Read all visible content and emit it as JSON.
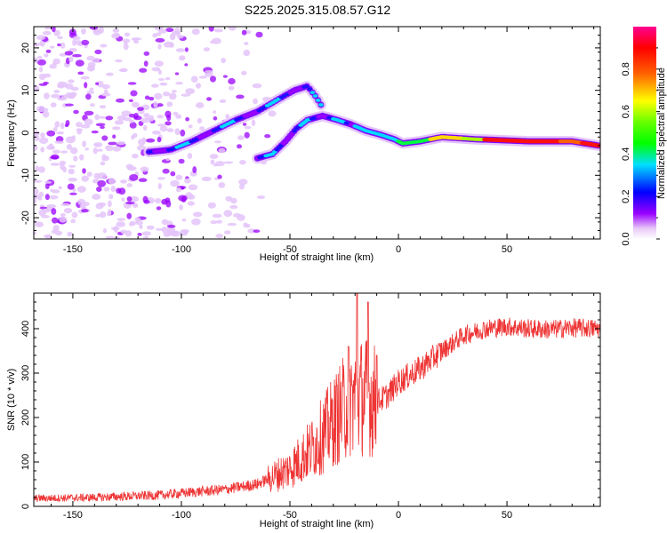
{
  "title": "S225.2025.315.08.57.G12",
  "chart_data": [
    {
      "type": "heatmap",
      "xlabel": "Height of straight line (km)",
      "ylabel": "Frequency (Hz)",
      "xlim": [
        -168,
        93
      ],
      "ylim": [
        -25,
        25
      ],
      "x_ticks": [
        -150,
        -100,
        -50,
        0,
        50
      ],
      "y_ticks": [
        -20,
        -10,
        0,
        10,
        20
      ],
      "colorbar": {
        "label": "Normalized spectral amplitude",
        "range": [
          0,
          1
        ],
        "ticks": [
          "0.0",
          "0.2",
          "0.4",
          "0.6",
          "0.8"
        ],
        "tick_values": [
          0.0,
          0.2,
          0.4,
          0.6,
          0.8
        ],
        "colors": [
          "#ffffff",
          "#e8c8f8",
          "#9a00ff",
          "#0000ff",
          "#00e0ff",
          "#00ff00",
          "#ffff00",
          "#ff6000",
          "#ff0000",
          "#ff0090"
        ]
      },
      "ridge_lower": [
        [
          -115,
          -4.5
        ],
        [
          -105,
          -4
        ],
        [
          -95,
          -2
        ],
        [
          -85,
          0.5
        ],
        [
          -75,
          3
        ],
        [
          -65,
          5
        ],
        [
          -55,
          8
        ],
        [
          -48,
          10
        ],
        [
          -42,
          11
        ],
        [
          -38,
          8.5
        ],
        [
          -35,
          6
        ]
      ],
      "ridge_upper": [
        [
          -65,
          -6
        ],
        [
          -58,
          -5
        ],
        [
          -52,
          -2
        ],
        [
          -47,
          1
        ],
        [
          -42,
          3
        ],
        [
          -35,
          4
        ],
        [
          -28,
          3
        ],
        [
          -22,
          2
        ],
        [
          -15,
          0.5
        ],
        [
          -8,
          -0.5
        ],
        [
          -2,
          -1.5
        ],
        [
          2,
          -2.5
        ],
        [
          10,
          -2
        ],
        [
          20,
          -1
        ],
        [
          35,
          -1.5
        ],
        [
          60,
          -2
        ],
        [
          80,
          -2
        ],
        [
          92,
          -3
        ]
      ]
    },
    {
      "type": "line",
      "xlabel": "Height of straight line (km)",
      "ylabel": "SNR (10 * v/v)",
      "xlim": [
        -168,
        93
      ],
      "ylim": [
        0,
        480
      ],
      "x_ticks": [
        -150,
        -100,
        -50,
        0,
        50
      ],
      "y_ticks": [
        0,
        100,
        200,
        300,
        400
      ],
      "series": [
        {
          "name": "SNR",
          "color": "#ee3333",
          "trend": [
            [
              -168,
              18
            ],
            [
              -140,
              20
            ],
            [
              -110,
              25
            ],
            [
              -95,
              32
            ],
            [
              -80,
              38
            ],
            [
              -65,
              50
            ],
            [
              -50,
              85
            ],
            [
              -40,
              130
            ],
            [
              -30,
              190
            ],
            [
              -22,
              240
            ],
            [
              -15,
              250
            ],
            [
              -10,
              235
            ],
            [
              -5,
              250
            ],
            [
              0,
              280
            ],
            [
              10,
              310
            ],
            [
              20,
              350
            ],
            [
              30,
              385
            ],
            [
              40,
              400
            ],
            [
              50,
              405
            ],
            [
              60,
              400
            ],
            [
              70,
              398
            ],
            [
              80,
              402
            ],
            [
              93,
              400
            ]
          ],
          "spikes": [
            [
              -19,
              480
            ],
            [
              -14,
              460
            ],
            [
              -10,
              340
            ],
            [
              -23,
              360
            ]
          ]
        }
      ]
    }
  ]
}
